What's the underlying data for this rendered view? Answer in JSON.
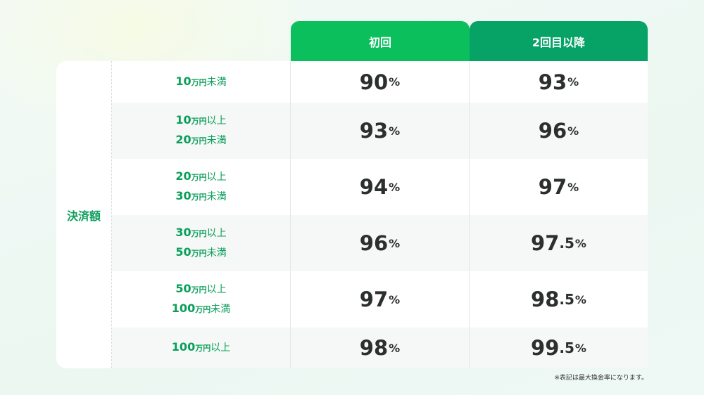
{
  "header": {
    "col1": "初回",
    "col2": "2回目以降"
  },
  "category": "決済額",
  "rows": [
    {
      "range": [
        {
          "num": "10",
          "unit": "万円",
          "suffix": "未満"
        }
      ],
      "first": "90",
      "repeat": "93"
    },
    {
      "range": [
        {
          "num": "10",
          "unit": "万円",
          "suffix": "以上"
        },
        {
          "num": "20",
          "unit": "万円",
          "suffix": "未満"
        }
      ],
      "first": "93",
      "repeat": "96"
    },
    {
      "range": [
        {
          "num": "20",
          "unit": "万円",
          "suffix": "以上"
        },
        {
          "num": "30",
          "unit": "万円",
          "suffix": "未満"
        }
      ],
      "first": "94",
      "repeat": "97"
    },
    {
      "range": [
        {
          "num": "30",
          "unit": "万円",
          "suffix": "以上"
        },
        {
          "num": "50",
          "unit": "万円",
          "suffix": "未満"
        }
      ],
      "first": "96",
      "repeat": "97.5"
    },
    {
      "range": [
        {
          "num": "50",
          "unit": "万円",
          "suffix": "以上"
        },
        {
          "num": "100",
          "unit": "万円",
          "suffix": "未満"
        }
      ],
      "first": "97",
      "repeat": "98.5"
    },
    {
      "range": [
        {
          "num": "100",
          "unit": "万円",
          "suffix": "以上"
        }
      ],
      "first": "98",
      "repeat": "99.5"
    }
  ],
  "percent": "%",
  "note": "※表記は最大換金率になります。",
  "colors": {
    "header1": "#0bbf5d",
    "header2": "#07a266",
    "label": "#0a9e5a"
  }
}
